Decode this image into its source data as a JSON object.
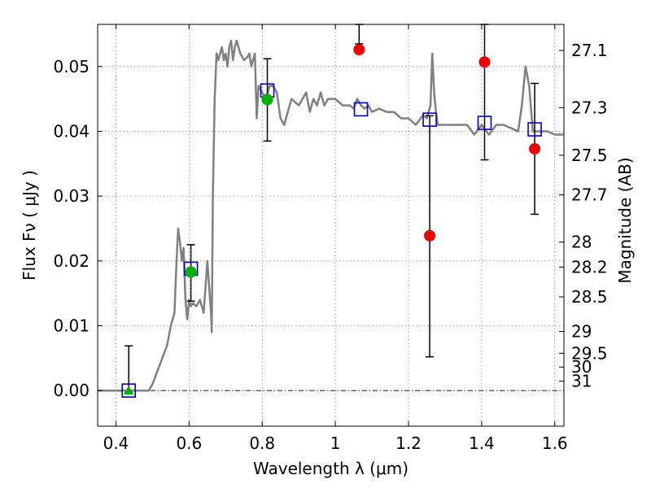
{
  "chart_data": {
    "type": "scatter",
    "xlabel": "Wavelength  λ (μm)",
    "ylabel": "Flux  Fν  ( μJy )",
    "y2label": "Magnitude (AB)",
    "xlim": [
      0.35,
      1.625
    ],
    "ylim": [
      -0.0055,
      0.0565
    ],
    "grid": true,
    "x_ticks": [
      {
        "value": 0.4,
        "label": "0.4"
      },
      {
        "value": 0.6,
        "label": "0.6"
      },
      {
        "value": 0.8,
        "label": "0.8"
      },
      {
        "value": 1.0,
        "label": "1"
      },
      {
        "value": 1.2,
        "label": "1.2"
      },
      {
        "value": 1.4,
        "label": "1.4"
      },
      {
        "value": 1.6,
        "label": "1.6"
      }
    ],
    "y_ticks": [
      {
        "value": 0.0,
        "label": "0.00"
      },
      {
        "value": 0.01,
        "label": "0.01"
      },
      {
        "value": 0.02,
        "label": "0.02"
      },
      {
        "value": 0.03,
        "label": "0.03"
      },
      {
        "value": 0.04,
        "label": "0.04"
      },
      {
        "value": 0.05,
        "label": "0.05"
      }
    ],
    "y2_ticks": [
      {
        "value": 27.1,
        "label": "27.1"
      },
      {
        "value": 27.3,
        "label": "27.3"
      },
      {
        "value": 27.5,
        "label": "27.5"
      },
      {
        "value": 27.7,
        "label": "27.7"
      },
      {
        "value": 28,
        "label": "28"
      },
      {
        "value": 28.2,
        "label": "28.2"
      },
      {
        "value": 28.5,
        "label": "28.5"
      },
      {
        "value": 29,
        "label": "29"
      },
      {
        "value": 29.5,
        "label": "29.5"
      },
      {
        "value": 30,
        "label": "30"
      },
      {
        "value": 31,
        "label": "31"
      }
    ],
    "model_spectrum": {
      "color": "#808080",
      "x": [
        0.35,
        0.45,
        0.49,
        0.5,
        0.52,
        0.54,
        0.55,
        0.56,
        0.565,
        0.57,
        0.575,
        0.58,
        0.585,
        0.59,
        0.595,
        0.6,
        0.605,
        0.61,
        0.62,
        0.63,
        0.64,
        0.645,
        0.65,
        0.66,
        0.662,
        0.665,
        0.67,
        0.675,
        0.68,
        0.69,
        0.695,
        0.7,
        0.705,
        0.71,
        0.715,
        0.72,
        0.725,
        0.73,
        0.74,
        0.75,
        0.76,
        0.765,
        0.77,
        0.78,
        0.785,
        0.79,
        0.8,
        0.81,
        0.82,
        0.83,
        0.84,
        0.85,
        0.86,
        0.87,
        0.88,
        0.9,
        0.92,
        0.93,
        0.94,
        0.95,
        0.96,
        0.97,
        0.98,
        1.0,
        1.02,
        1.04,
        1.05,
        1.06,
        1.07,
        1.08,
        1.09,
        1.1,
        1.12,
        1.14,
        1.16,
        1.18,
        1.2,
        1.22,
        1.24,
        1.25,
        1.26,
        1.265,
        1.27,
        1.275,
        1.28,
        1.3,
        1.32,
        1.34,
        1.36,
        1.38,
        1.4,
        1.42,
        1.44,
        1.46,
        1.48,
        1.5,
        1.51,
        1.52,
        1.53,
        1.54,
        1.56,
        1.58,
        1.6,
        1.625
      ],
      "y": [
        0.0,
        0.0,
        0.0,
        0.001,
        0.004,
        0.007,
        0.01,
        0.012,
        0.019,
        0.025,
        0.023,
        0.02,
        0.022,
        0.014,
        0.011,
        0.014,
        0.013,
        0.0135,
        0.013,
        0.014,
        0.012,
        0.016,
        0.02,
        0.012,
        0.009,
        0.03,
        0.045,
        0.052,
        0.051,
        0.053,
        0.051,
        0.052,
        0.05,
        0.053,
        0.054,
        0.051,
        0.053,
        0.054,
        0.052,
        0.051,
        0.0515,
        0.052,
        0.05,
        0.052,
        0.042,
        0.047,
        0.046,
        0.045,
        0.047,
        0.047,
        0.046,
        0.042,
        0.041,
        0.043,
        0.045,
        0.044,
        0.046,
        0.043,
        0.045,
        0.044,
        0.046,
        0.044,
        0.045,
        0.045,
        0.044,
        0.044,
        0.0435,
        0.045,
        0.044,
        0.0435,
        0.044,
        0.043,
        0.0435,
        0.043,
        0.043,
        0.042,
        0.042,
        0.041,
        0.0425,
        0.042,
        0.044,
        0.052,
        0.046,
        0.043,
        0.041,
        0.041,
        0.041,
        0.041,
        0.041,
        0.0395,
        0.041,
        0.0395,
        0.041,
        0.041,
        0.0405,
        0.04,
        0.044,
        0.05,
        0.047,
        0.04,
        0.04,
        0.04,
        0.0395,
        0.0395
      ]
    },
    "green_points": [
      {
        "x": 0.435,
        "y": 0.0,
        "marker": "triangle"
      },
      {
        "x": 0.605,
        "y": 0.0183,
        "marker": "circle"
      },
      {
        "x": 0.814,
        "y": 0.0449,
        "marker": "circle"
      }
    ],
    "red_points": [
      {
        "x": 1.065,
        "y": 0.0526
      },
      {
        "x": 1.258,
        "y": 0.0239
      },
      {
        "x": 1.408,
        "y": 0.0507
      },
      {
        "x": 1.545,
        "y": 0.0373
      }
    ],
    "model_bands": [
      {
        "x": 0.435,
        "y": 0.0
      },
      {
        "x": 0.605,
        "y": 0.0188
      },
      {
        "x": 0.814,
        "y": 0.0463
      },
      {
        "x": 1.07,
        "y": 0.0434
      },
      {
        "x": 1.258,
        "y": 0.0418
      },
      {
        "x": 1.408,
        "y": 0.0413
      },
      {
        "x": 1.545,
        "y": 0.0403
      }
    ],
    "error_bars": [
      {
        "x": 0.435,
        "low": -0.0003,
        "high": 0.0069
      },
      {
        "x": 0.605,
        "low": 0.0138,
        "high": 0.0225
      },
      {
        "x": 0.814,
        "low": 0.0385,
        "high": 0.0512
      },
      {
        "x": 1.065,
        "low": 0.0535,
        "high": 0.0565
      },
      {
        "x": 1.258,
        "low": 0.0052,
        "high": 0.0424
      },
      {
        "x": 1.408,
        "low": 0.0356,
        "high": 0.0565
      },
      {
        "x": 1.545,
        "low": 0.0272,
        "high": 0.0474
      }
    ],
    "colors": {
      "green": "#00b000",
      "red": "#ee0000",
      "blue": "#0000cc",
      "errorbar": "#000000",
      "grid": "#888888"
    }
  }
}
